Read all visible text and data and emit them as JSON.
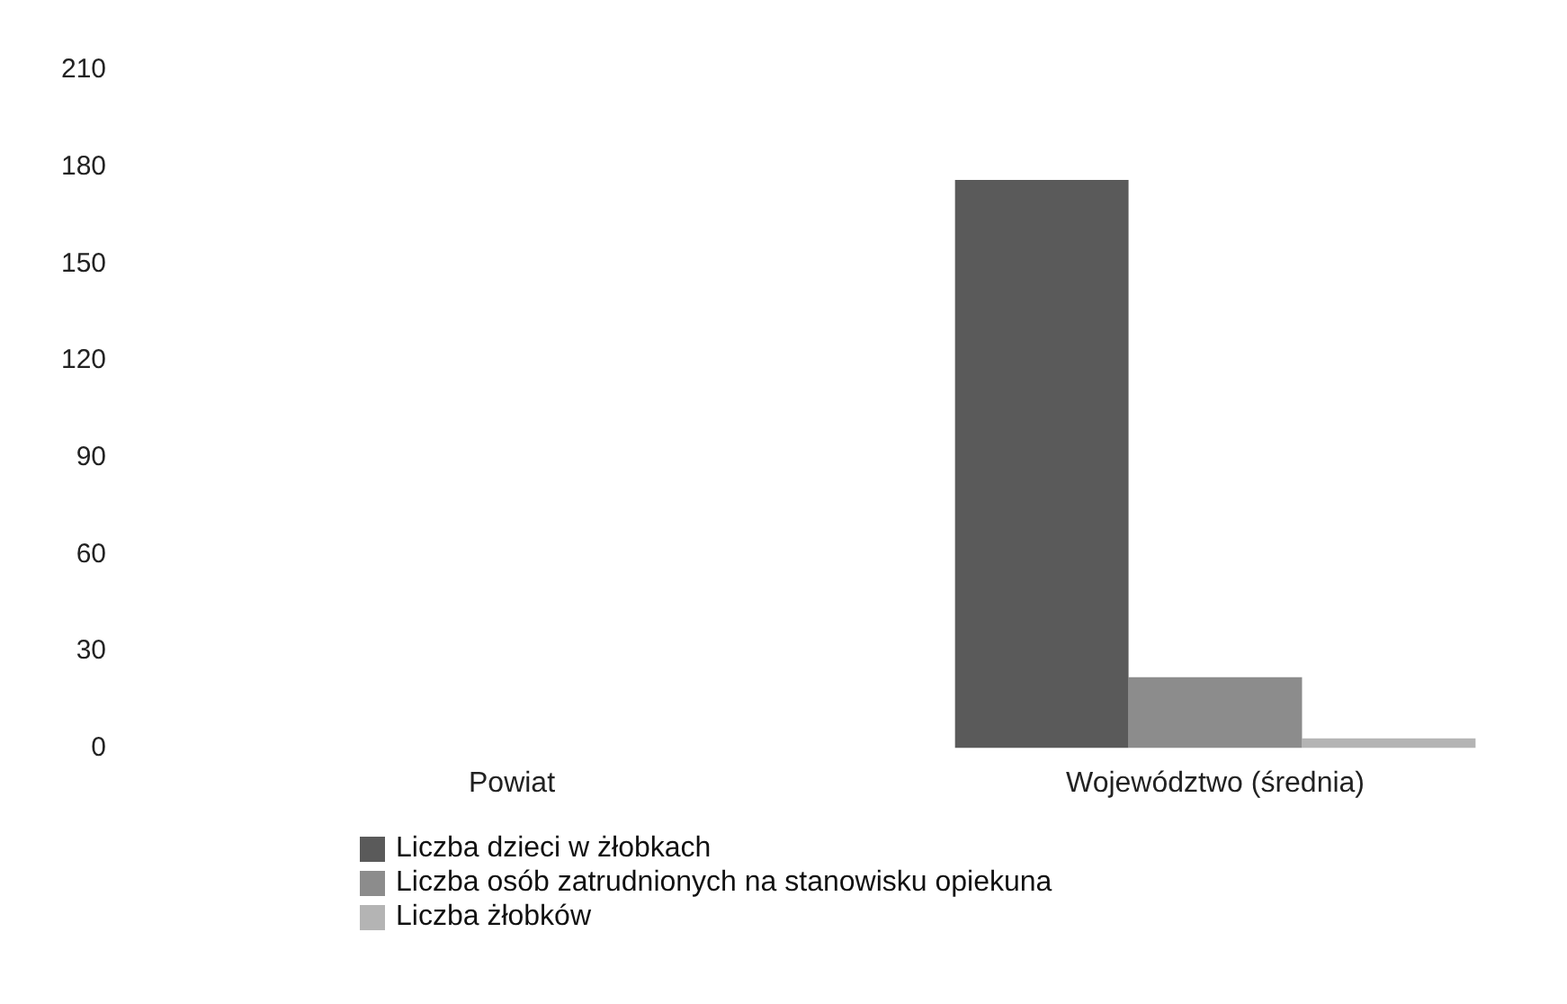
{
  "chart_data": {
    "type": "bar",
    "categories": [
      "Powiat",
      "Województwo (średnia)"
    ],
    "series": [
      {
        "name": "Liczba dzieci w żłobkach",
        "color": "#5a5a5a",
        "values": [
          0,
          176
        ]
      },
      {
        "name": "Liczba osób zatrudnionych na stanowisku opiekuna",
        "color": "#8c8c8c",
        "values": [
          0,
          22
        ]
      },
      {
        "name": "Liczba żłobków",
        "color": "#b4b4b4",
        "values": [
          0,
          3
        ]
      }
    ],
    "ylim": [
      0,
      210
    ],
    "yticks": [
      0,
      30,
      60,
      90,
      120,
      150,
      180,
      210
    ],
    "grid": false,
    "legend": "bottom"
  }
}
